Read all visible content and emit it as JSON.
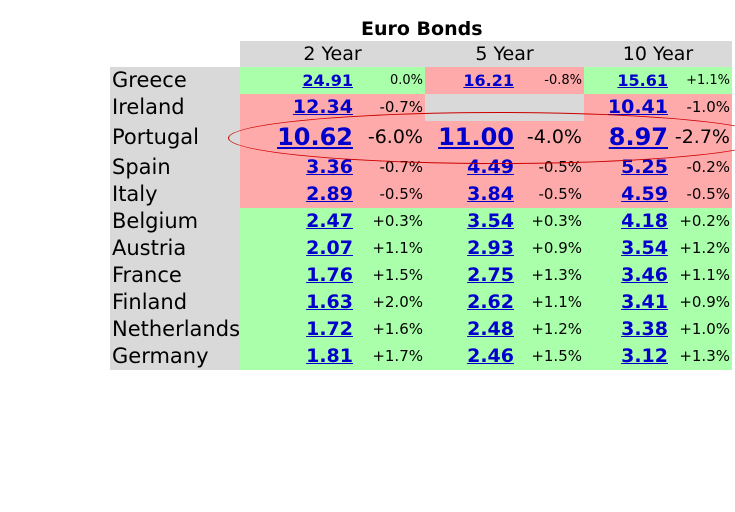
{
  "title": "Euro Bonds",
  "columns": [
    "2 Year",
    "5 Year",
    "10 Year"
  ],
  "rows": [
    {
      "country": "Greece",
      "y2": "24.91",
      "c2": "0.0%",
      "y5": "16.21",
      "c5": "-0.8%",
      "y10": "15.61",
      "c10": "+1.1%"
    },
    {
      "country": "Ireland",
      "y2": "12.34",
      "c2": "-0.7%",
      "y5": "",
      "c5": "",
      "y10": "10.41",
      "c10": "-1.0%"
    },
    {
      "country": "Portugal",
      "y2": "10.62",
      "c2": "-6.0%",
      "y5": "11.00",
      "c5": "-4.0%",
      "y10": "8.97",
      "c10": "-2.7%"
    },
    {
      "country": "Spain",
      "y2": "3.36",
      "c2": "-0.7%",
      "y5": "4.49",
      "c5": "-0.5%",
      "y10": "5.25",
      "c10": "-0.2%"
    },
    {
      "country": "Italy",
      "y2": "2.89",
      "c2": "-0.5%",
      "y5": "3.84",
      "c5": "-0.5%",
      "y10": "4.59",
      "c10": "-0.5%"
    },
    {
      "country": "Belgium",
      "y2": "2.47",
      "c2": "+0.3%",
      "y5": "3.54",
      "c5": "+0.3%",
      "y10": "4.18",
      "c10": "+0.2%"
    },
    {
      "country": "Austria",
      "y2": "2.07",
      "c2": "+1.1%",
      "y5": "2.93",
      "c5": "+0.9%",
      "y10": "3.54",
      "c10": "+1.2%"
    },
    {
      "country": "France",
      "y2": "1.76",
      "c2": "+1.5%",
      "y5": "2.75",
      "c5": "+1.3%",
      "y10": "3.46",
      "c10": "+1.1%"
    },
    {
      "country": "Finland",
      "y2": "1.63",
      "c2": "+2.0%",
      "y5": "2.62",
      "c5": "+1.1%",
      "y10": "3.41",
      "c10": "+0.9%"
    },
    {
      "country": "Netherlands",
      "y2": "1.72",
      "c2": "+1.6%",
      "y5": "2.48",
      "c5": "+1.2%",
      "y10": "3.38",
      "c10": "+1.0%"
    },
    {
      "country": "Germany",
      "y2": "1.81",
      "c2": "+1.7%",
      "y5": "2.46",
      "c5": "+1.5%",
      "y10": "3.12",
      "c10": "+1.3%"
    }
  ],
  "colors": {
    "green": "#aaffaa",
    "red": "#ffaaaa",
    "header": "#d9d9d9",
    "link": "#0000cc",
    "ring": "#cc0000"
  }
}
